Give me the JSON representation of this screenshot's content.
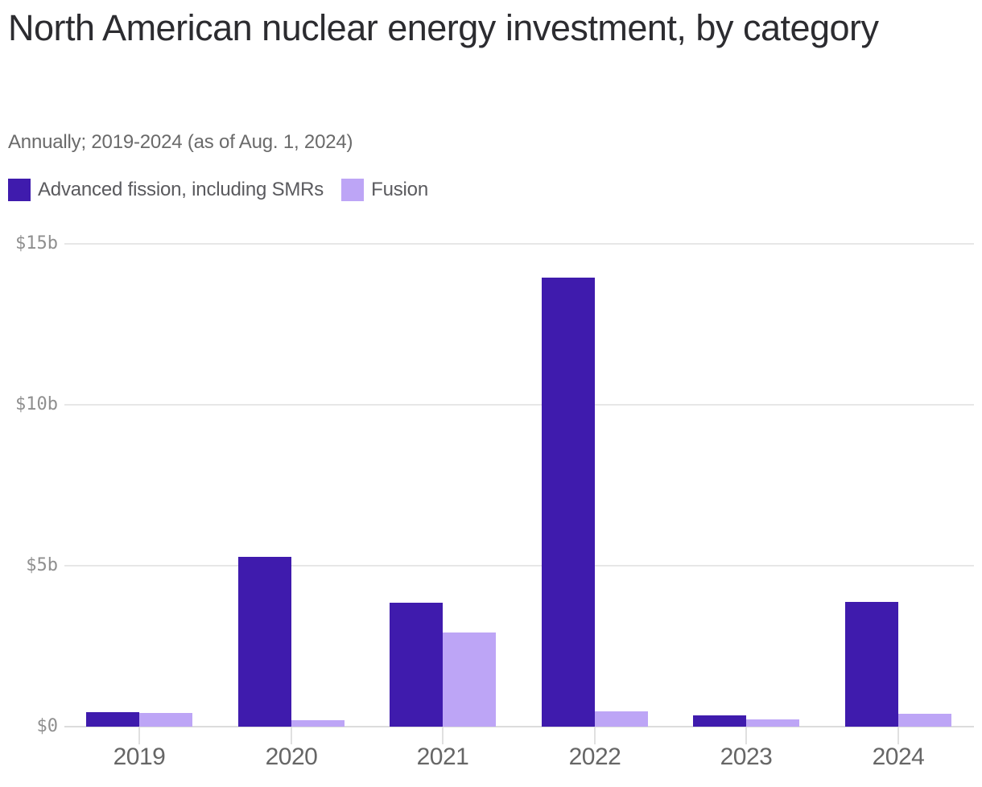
{
  "title": "North American nuclear energy investment, by category",
  "subtitle": "Annually; 2019-2024 (as of Aug. 1, 2024)",
  "legend": [
    {
      "label": "Advanced fission, including SMRs",
      "color": "#3f1bad"
    },
    {
      "label": "Fusion",
      "color": "#bda5f6"
    }
  ],
  "colors": {
    "fission": "#3f1bad",
    "fusion": "#bda5f6",
    "title_text": "#2c2c30",
    "subtitle_text": "#6a6a6a",
    "legend_text": "#5a5a5e",
    "y_axis_text": "#8f8f8f",
    "x_axis_text": "#666666",
    "gridline": "#e7e7e7",
    "baseline": "#dcdcdc"
  },
  "chart_data": {
    "type": "bar",
    "title": "North American nuclear energy investment, by category",
    "subtitle": "Annually; 2019-2024 (as of Aug. 1, 2024)",
    "categories": [
      "2019",
      "2020",
      "2021",
      "2022",
      "2023",
      "2024"
    ],
    "series": [
      {
        "name": "Advanced fission, including SMRs",
        "color": "#3f1bad",
        "values": [
          0.45,
          5.28,
          3.85,
          13.95,
          0.35,
          3.88
        ]
      },
      {
        "name": "Fusion",
        "color": "#bda5f6",
        "values": [
          0.42,
          0.2,
          2.92,
          0.47,
          0.22,
          0.4
        ]
      }
    ],
    "unit": "billion USD",
    "xlabel": "",
    "ylabel": "",
    "ylim": [
      0,
      15
    ],
    "yticks": [
      0,
      5,
      10,
      15
    ],
    "ytick_labels": [
      "$0",
      "$5b",
      "$10b",
      "$15b"
    ],
    "grid": true,
    "legend_position": "top-left"
  }
}
